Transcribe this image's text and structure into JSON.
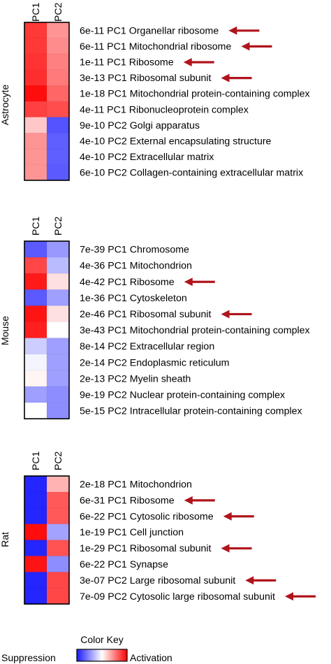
{
  "chart_data": [
    {
      "type": "heatmap",
      "panel_label": "Astrocyte",
      "columns": [
        "PC1",
        "PC2"
      ],
      "rows": [
        {
          "pvalue": "6e-11",
          "pc": "PC1",
          "term": "Organellar ribosome",
          "values": [
            0.78,
            0.42
          ],
          "arrow": true
        },
        {
          "pvalue": "6e-11",
          "pc": "PC1",
          "term": "Mitochondrial ribosome",
          "values": [
            0.78,
            0.45
          ],
          "arrow": true
        },
        {
          "pvalue": "1e-11",
          "pc": "PC1",
          "term": "Ribosome",
          "values": [
            0.8,
            0.5
          ],
          "arrow": true
        },
        {
          "pvalue": "3e-13",
          "pc": "PC1",
          "term": "Ribosomal subunit",
          "values": [
            0.82,
            0.52
          ],
          "arrow": true
        },
        {
          "pvalue": "1e-18",
          "pc": "PC1",
          "term": "Mitochondrial protein-containing complex",
          "values": [
            0.95,
            0.6
          ],
          "arrow": false
        },
        {
          "pvalue": "4e-11",
          "pc": "PC1",
          "term": "Ribonucleoprotein complex",
          "values": [
            0.75,
            0.7
          ],
          "arrow": false
        },
        {
          "pvalue": "9e-10",
          "pc": "PC2",
          "term": "Golgi apparatus",
          "values": [
            0.22,
            -0.75
          ],
          "arrow": false
        },
        {
          "pvalue": "4e-10",
          "pc": "PC2",
          "term": "External encapsulating structure",
          "values": [
            0.42,
            -0.7
          ],
          "arrow": false
        },
        {
          "pvalue": "4e-10",
          "pc": "PC2",
          "term": "Extracellular matrix",
          "values": [
            0.42,
            -0.7
          ],
          "arrow": false
        },
        {
          "pvalue": "6e-10",
          "pc": "PC2",
          "term": "Collagen-containing extracellular matrix",
          "values": [
            0.42,
            -0.72
          ],
          "arrow": false
        }
      ]
    },
    {
      "type": "heatmap",
      "panel_label": "Mouse",
      "columns": [
        "PC1",
        "PC2"
      ],
      "rows": [
        {
          "pvalue": "7e-39",
          "pc": "PC1",
          "term": "Chromosome",
          "values": [
            -0.72,
            -0.45
          ],
          "arrow": false
        },
        {
          "pvalue": "4e-36",
          "pc": "PC1",
          "term": "Mitochondrion",
          "values": [
            0.72,
            -0.3
          ],
          "arrow": false
        },
        {
          "pvalue": "4e-42",
          "pc": "PC1",
          "term": "Ribosome",
          "values": [
            0.9,
            0.12
          ],
          "arrow": true
        },
        {
          "pvalue": "1e-36",
          "pc": "PC1",
          "term": "Cytoskeleton",
          "values": [
            -0.72,
            -0.42
          ],
          "arrow": false
        },
        {
          "pvalue": "2e-46",
          "pc": "PC1",
          "term": "Ribosomal subunit",
          "values": [
            0.92,
            0.12
          ],
          "arrow": true
        },
        {
          "pvalue": "3e-43",
          "pc": "PC1",
          "term": "Mitochondrial protein-containing complex",
          "values": [
            0.88,
            0.0
          ],
          "arrow": false
        },
        {
          "pvalue": "8e-14",
          "pc": "PC2",
          "term": "Extracellular region",
          "values": [
            -0.22,
            -0.42
          ],
          "arrow": false
        },
        {
          "pvalue": "2e-14",
          "pc": "PC2",
          "term": "Endoplasmic reticulum",
          "values": [
            -0.05,
            -0.42
          ],
          "arrow": false
        },
        {
          "pvalue": "2e-13",
          "pc": "PC2",
          "term": "Myelin sheath",
          "values": [
            0.04,
            -0.42
          ],
          "arrow": false
        },
        {
          "pvalue": "9e-19",
          "pc": "PC2",
          "term": "Nuclear protein-containing complex",
          "values": [
            -0.42,
            -0.5
          ],
          "arrow": false
        },
        {
          "pvalue": "5e-15",
          "pc": "PC2",
          "term": "Intracellular protein-containing complex",
          "values": [
            0.0,
            -0.5
          ],
          "arrow": false
        }
      ]
    },
    {
      "type": "heatmap",
      "panel_label": "Rat",
      "columns": [
        "PC1",
        "PC2"
      ],
      "rows": [
        {
          "pvalue": "2e-18",
          "pc": "PC1",
          "term": "Mitochondrion",
          "values": [
            -0.95,
            0.3
          ],
          "arrow": false
        },
        {
          "pvalue": "6e-31",
          "pc": "PC1",
          "term": "Ribosome",
          "values": [
            -0.95,
            0.65
          ],
          "arrow": true
        },
        {
          "pvalue": "6e-22",
          "pc": "PC1",
          "term": "Cytosolic ribosome",
          "values": [
            -0.95,
            0.65
          ],
          "arrow": true
        },
        {
          "pvalue": "1e-19",
          "pc": "PC1",
          "term": "Cell junction",
          "values": [
            0.95,
            -0.4
          ],
          "arrow": false
        },
        {
          "pvalue": "1e-29",
          "pc": "PC1",
          "term": "Ribosomal subunit",
          "values": [
            -0.95,
            0.68
          ],
          "arrow": true
        },
        {
          "pvalue": "6e-22",
          "pc": "PC1",
          "term": "Synapse",
          "values": [
            0.92,
            -0.5
          ],
          "arrow": false
        },
        {
          "pvalue": "3e-07",
          "pc": "PC2",
          "term": "Large ribosomal subunit",
          "values": [
            -0.95,
            0.72
          ],
          "arrow": true
        },
        {
          "pvalue": "7e-09",
          "pc": "PC2",
          "term": "Cytosolic large ribosomal subunit",
          "values": [
            -0.95,
            0.72
          ],
          "arrow": true
        }
      ]
    }
  ],
  "legend": {
    "title": "Color Key",
    "left_label": "Suppression",
    "right_label": "Activation",
    "low_color": "#1a1aff",
    "mid_color": "#ffffff",
    "high_color": "#ff0000"
  },
  "arrow_color": "#b0141c",
  "value_scale": [
    -1,
    1
  ]
}
